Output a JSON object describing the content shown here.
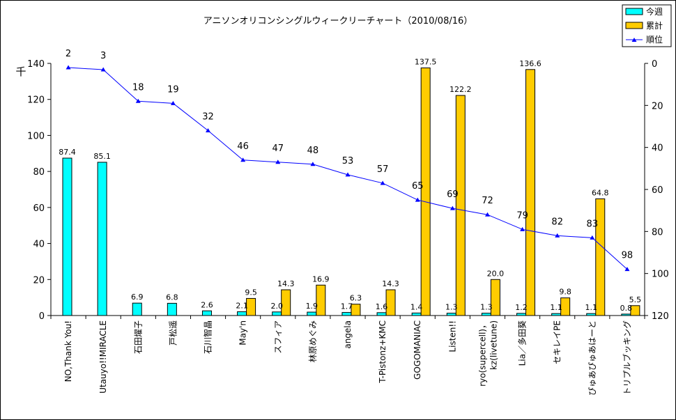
{
  "chart_data": {
    "type": "bar",
    "title": "アニソンオリコンシングルウィークリーチャート（2010/08/16）",
    "ylabel": "千",
    "ylim": [
      0,
      140
    ],
    "yticks": [
      0,
      20,
      40,
      60,
      80,
      100,
      120,
      140
    ],
    "y2lim": [
      0,
      120
    ],
    "y2ticks": [
      0,
      20,
      40,
      60,
      80,
      100,
      120
    ],
    "y2_reversed": true,
    "legend_position": "top-right",
    "categories": [
      "NO,Thank You!",
      "Utauyo!!MIRACLE",
      "石田燿子",
      "戸松遥",
      "石川智晶",
      "May'n",
      "スフィア",
      "林原めぐみ",
      "angela",
      "T-Pistonz+KMC",
      "GOGOMANIAC",
      "Listen!!",
      "ryo(supercell)，kz(livetune)",
      "Lia／多田葵",
      "セキレイPE",
      "ぴゅあぴゅあはーと",
      "トリプルブッキング"
    ],
    "series": [
      {
        "name": "今週",
        "type": "bar",
        "color": "#00ffff",
        "values": [
          87.4,
          85.1,
          6.9,
          6.8,
          2.6,
          2.1,
          2.0,
          1.9,
          1.7,
          1.6,
          1.4,
          1.3,
          1.3,
          1.2,
          1.1,
          1.1,
          0.8
        ],
        "labels": [
          "87.4",
          "85.1",
          "6.9",
          "6.8",
          "2.6",
          "2.1",
          "2.0",
          "1.9",
          "1.7",
          "1.6",
          "1.4",
          "1.3",
          "1.3",
          "1.2",
          "1.1",
          "1.1",
          "0.8"
        ]
      },
      {
        "name": "累計",
        "type": "bar",
        "color": "#ffcc00",
        "values": [
          null,
          null,
          null,
          null,
          null,
          9.5,
          14.3,
          16.9,
          6.3,
          14.3,
          137.5,
          122.2,
          20.0,
          136.6,
          9.8,
          64.8,
          5.5
        ],
        "labels": [
          "",
          "",
          "",
          "",
          "",
          "9.5",
          "14.3",
          "16.9",
          "6.3",
          "14.3",
          "137.5",
          "122.2",
          "20.0",
          "136.6",
          "9.8",
          "64.8",
          "5.5"
        ]
      },
      {
        "name": "順位",
        "type": "line",
        "axis": "right",
        "color": "#0000ff",
        "values": [
          2,
          3,
          18,
          19,
          32,
          46,
          47,
          48,
          53,
          57,
          65,
          69,
          72,
          79,
          82,
          83,
          98
        ],
        "labels": [
          "2",
          "3",
          "18",
          "19",
          "32",
          "46",
          "47",
          "48",
          "53",
          "57",
          "65",
          "69",
          "72",
          "79",
          "82",
          "83",
          "98"
        ]
      }
    ]
  }
}
